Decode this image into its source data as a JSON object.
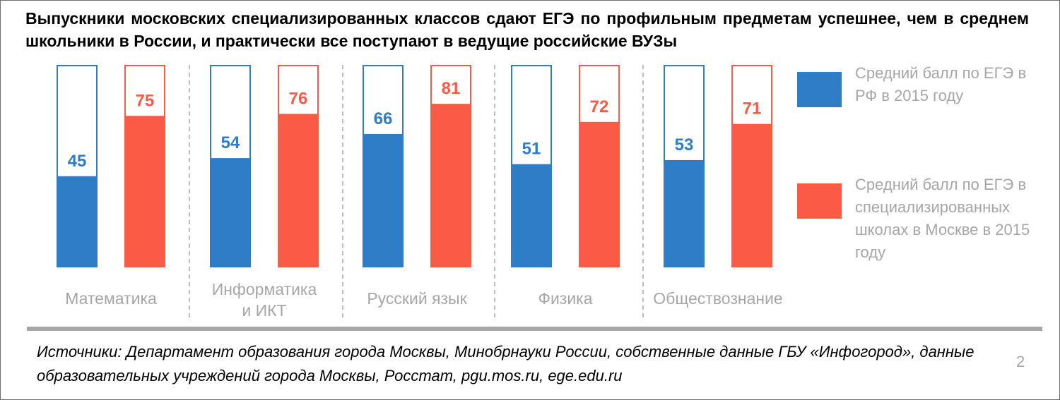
{
  "title": "Выпускники московских специализированных классов сдают ЕГЭ по профильным предметам успешнее, чем в среднем школьники в России, и практически все поступают в ведущие российские ВУЗы",
  "colors": {
    "blue": "#2e7dc6",
    "red": "#fb5b46",
    "grey": "#a6a6a6"
  },
  "chart_data": {
    "type": "bar",
    "categories": [
      "Математика",
      "Информатика и ИКТ",
      "Русский язык",
      "Физика",
      "Обществознание"
    ],
    "category_lines": [
      [
        "Математика"
      ],
      [
        "Информатика",
        "и ИКТ"
      ],
      [
        "Русский язык"
      ],
      [
        "Физика"
      ],
      [
        "Обществознание"
      ]
    ],
    "series": [
      {
        "name": "Средний балл по ЕГЭ в РФ в 2015 году",
        "color": "#2e7dc6",
        "values": [
          45,
          54,
          66,
          51,
          53
        ]
      },
      {
        "name": "Средний балл по ЕГЭ в специализированных школах в Москве в 2015 году",
        "color": "#fb5b46",
        "values": [
          75,
          76,
          81,
          72,
          71
        ]
      }
    ],
    "ylim": [
      0,
      100
    ],
    "grid": false,
    "legend_position": "right"
  },
  "legend": [
    {
      "label": "Средний балл по ЕГЭ в РФ в 2015 году",
      "color": "#2e7dc6"
    },
    {
      "label": "Средний балл по ЕГЭ в специализированных школах в Москве в 2015 году",
      "color": "#fb5b46"
    }
  ],
  "sources": "Источники: Департамент образования города Москвы, Минобрнауки России, собственные данные ГБУ «Инфогород», данные образовательных учреждений города Москвы, Росстат, pgu.mos.ru, ege.edu.ru",
  "page_number": "2"
}
